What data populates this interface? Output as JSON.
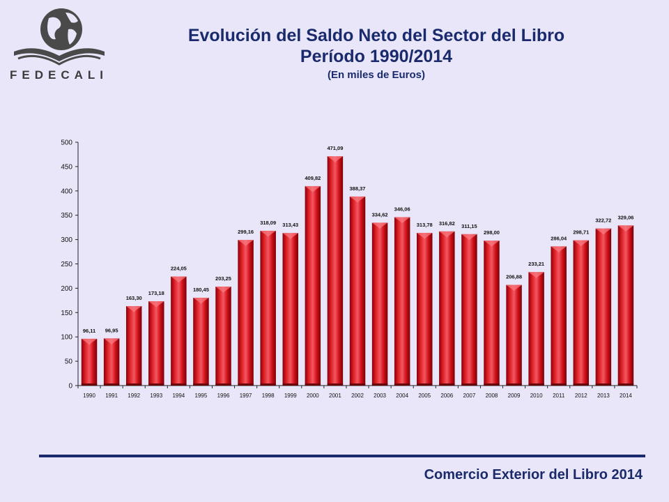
{
  "logo": {
    "text": "FEDECALI"
  },
  "header": {
    "title_line1": "Evolución del Saldo Neto del Sector del Libro",
    "title_line2": "Período 1990/2014",
    "subtitle": "(En miles de Euros)"
  },
  "footer": {
    "text": "Comercio Exterior del Libro 2014"
  },
  "colors": {
    "bar": "#c8101a",
    "bar_light": "#f0505a",
    "bar_dark": "#8a0008",
    "title": "#1a2a6c",
    "background": "#e8e6f8"
  },
  "chart_data": {
    "type": "bar",
    "title": "Evolución del Saldo Neto del Sector del Libro",
    "xlabel": "",
    "ylabel": "",
    "ylim": [
      0,
      500
    ],
    "yticks": [
      0,
      50,
      100,
      150,
      200,
      250,
      300,
      350,
      400,
      450,
      500
    ],
    "grid": false,
    "legend": "none",
    "categories": [
      "1990",
      "1991",
      "1992",
      "1993",
      "1994",
      "1995",
      "1996",
      "1997",
      "1998",
      "1999",
      "2000",
      "2001",
      "2002",
      "2003",
      "2004",
      "2005",
      "2006",
      "2007",
      "2008",
      "2009",
      "2010",
      "2011",
      "2012",
      "2013",
      "2014"
    ],
    "values": [
      96.11,
      96.95,
      163.3,
      173.18,
      224.05,
      180.45,
      203.25,
      299.16,
      318.09,
      313.43,
      409.82,
      471.09,
      388.37,
      334.62,
      346.06,
      313.78,
      316.82,
      311.15,
      298.0,
      206.88,
      233.21,
      286.04,
      298.71,
      322.72,
      329.06
    ],
    "data_labels": [
      "96,11",
      "96,95",
      "163,30",
      "173,18",
      "224,05",
      "180,45",
      "203,25",
      "299,16",
      "318,09",
      "313,43",
      "409,82",
      "471,09",
      "388,37",
      "334,62",
      "346,06",
      "313,78",
      "316,82",
      "311,15",
      "298,00",
      "206,88",
      "233,21",
      "286,04",
      "298,71",
      "322,72",
      "329,06"
    ]
  }
}
